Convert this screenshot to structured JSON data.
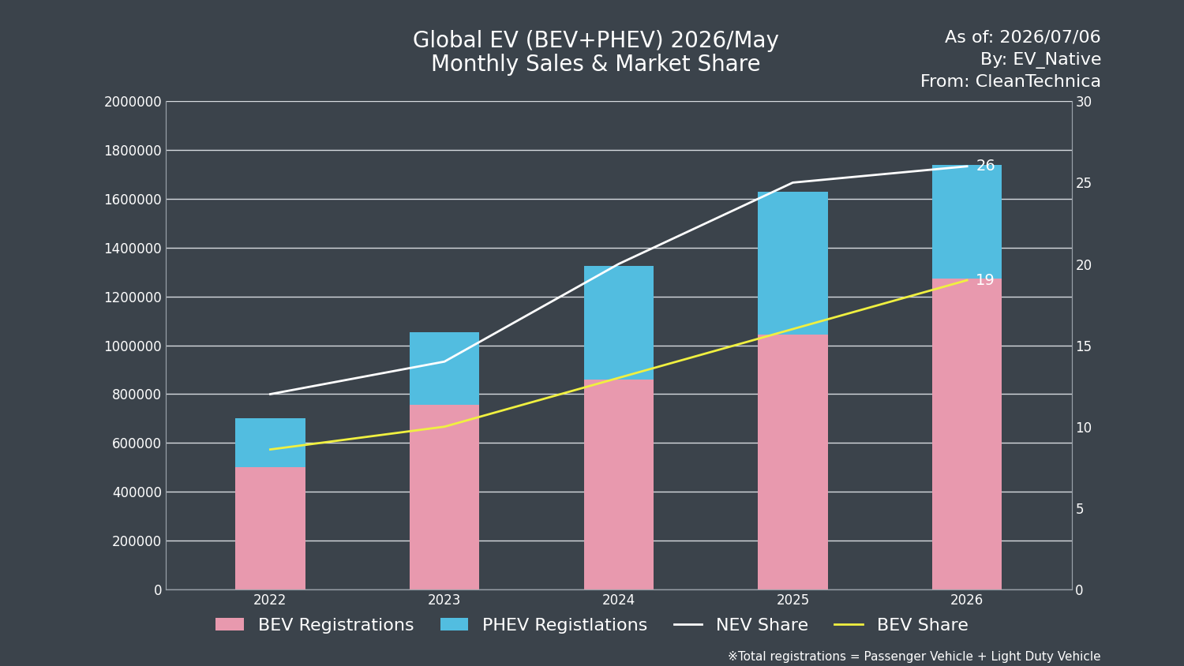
{
  "chart_data": {
    "type": "bar",
    "title": "Global EV (BEV+PHEV) 2026/May\nMonthly Sales & Market Share",
    "annotations": [
      "As of: 2026/07/06",
      "By: EV_Native",
      "From: CleanTechnica"
    ],
    "footnote": "※Total registrations = Passenger Vehicle + Light Duty Vehicle",
    "categories": [
      "2022",
      "2023",
      "2024",
      "2025",
      "2026"
    ],
    "stacked": true,
    "grid": true,
    "legend": "lower center",
    "series": [
      {
        "name": "BEV Registrations",
        "type": "bar",
        "color": "#e899ae",
        "values": [
          500000,
          755000,
          860000,
          1045000,
          1275000
        ]
      },
      {
        "name": "PHEV Registlations",
        "type": "bar",
        "color": "#52bde0",
        "values": [
          200000,
          300000,
          465000,
          585000,
          465000
        ]
      },
      {
        "name": "NEV Share",
        "type": "line",
        "axis": "y2",
        "color": "#ffffff",
        "line_style": "solid",
        "values": [
          12,
          14,
          20,
          25,
          26
        ],
        "value_labels": [
          null,
          null,
          null,
          null,
          "26"
        ]
      },
      {
        "name": "BEV Share",
        "type": "line",
        "axis": "y2",
        "color": "#f0f040",
        "line_style": "solid",
        "values": [
          8.6,
          10,
          13,
          16,
          19
        ],
        "value_labels": [
          null,
          null,
          null,
          null,
          "19"
        ]
      }
    ],
    "ylim": [
      0,
      2000000
    ],
    "yticks": [
      0,
      200000,
      400000,
      600000,
      800000,
      1000000,
      1200000,
      1400000,
      1600000,
      1800000,
      2000000
    ],
    "y2lim": [
      0,
      30
    ],
    "y2ticks": [
      0,
      5,
      10,
      15,
      20,
      25,
      30
    ]
  }
}
